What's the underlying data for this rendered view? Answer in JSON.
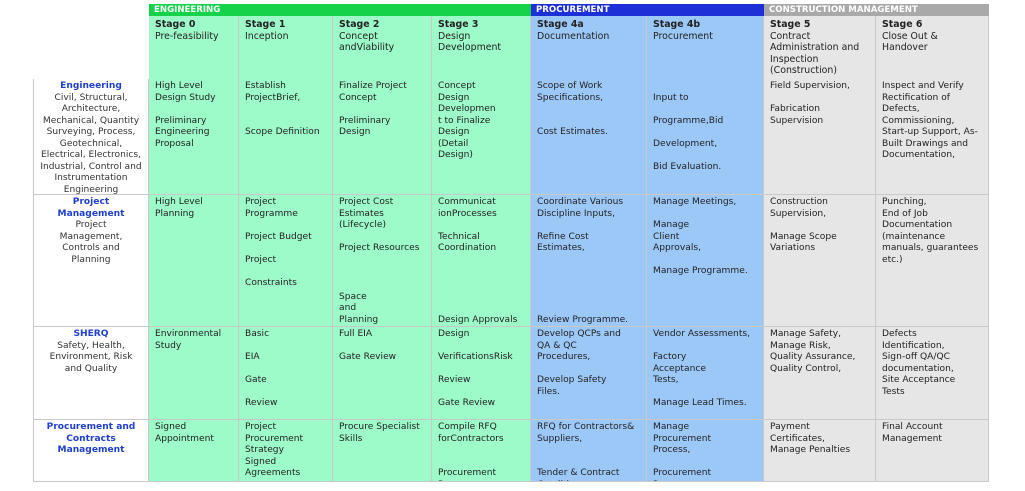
{
  "colors": {
    "engineering_phase": "#16d24a",
    "procurement_phase": "#1d2fd6",
    "construction_phase": "#a9a9a9",
    "engineering_cell": "#9dfbc9",
    "procurement_cell": "#9cc8f8",
    "construction_cell": "#e6e6e6",
    "row_title": "#1f3fd0"
  },
  "phases": [
    {
      "label": "ENGINEERING",
      "cls": "eng"
    },
    {
      "label": "PROCUREMENT",
      "cls": "proc"
    },
    {
      "label": "CONSTRUCTION MANAGEMENT",
      "cls": "cons"
    }
  ],
  "stages": [
    {
      "label": "Stage 0",
      "desc": "Pre-feasibility"
    },
    {
      "label": "Stage 1",
      "desc": "Inception"
    },
    {
      "label": "Stage 2",
      "desc": "Concept\nandViability"
    },
    {
      "label": "Stage 3",
      "desc": "Design\nDevelopment"
    },
    {
      "label": "Stage 4a",
      "desc": "Documentation"
    },
    {
      "label": "Stage 4b",
      "desc": "Procurement"
    },
    {
      "label": "Stage 5",
      "desc": "Contract\nAdministration and\nInspection\n(Construction)"
    },
    {
      "label": "Stage 6",
      "desc": "Close Out &\nHandover"
    }
  ],
  "rows": [
    {
      "title": "Engineering",
      "subtitle": "Civil, Structural, Architecture, Mechanical, Quantity Surveying, Process, Geotechnical, Electrical, Electronics, Industrial, Control and Instrumentation Engineering",
      "cells": [
        "High Level\nDesign Study\n\nPreliminary\nEngineering\nProposal",
        "Establish\nProjectBrief,\n\n\nScope Definition",
        "Finalize Project\nConcept\n\nPreliminary\nDesign",
        "Concept\nDesign\nDevelopmen\nt  to  Finalize\nDesign\n(Detail\nDesign)",
        "Scope of Work\nSpecifications,\n\n\nCost Estimates.",
        "\nInput to\n\nProgramme,Bid\n\nDevelopment,\n\nBid Evaluation.",
        "Field Supervision,\n\nFabrication\nSupervision",
        "Inspect and Verify\nRectification of\nDefects,\nCommissioning,\nStart-up Support, As-\nBuilt Drawings and\nDocumentation,"
      ]
    },
    {
      "title": "Project\nManagement",
      "subtitle": "Project\nManagement,\nControls and\nPlanning",
      "cells": [
        "High Level\nPlanning",
        "Project\nProgramme\n\nProject Budget\n\nProject\n\nConstraints",
        "Project Cost\nEstimates\n(Lifecycle)\n\nProject Resources",
        "Communicat\nionProcesses\n\nTechnical\nCoordination",
        "Coordinate Various\nDiscipline Inputs,\n\nRefine Cost\nEstimates,",
        "Manage Meetings,\n\nManage\nClient\nApprovals,\n\nManage Programme.",
        "Construction\nSupervision,\n\nManage Scope\nVariations",
        "Punching,\nEnd of Job\nDocumentation\n(maintenance\nmanuals, guarantees\netc.)"
      ],
      "extras": [
        "",
        "",
        "Space\nand\nPlanning",
        "Design Approvals",
        "Review Programme.",
        "",
        "",
        ""
      ]
    },
    {
      "title": "SHERQ",
      "subtitle": "Safety, Health,\nEnvironment, Risk\nand Quality",
      "cells": [
        "Environmental\nStudy",
        "Basic\n\nEIA\n\nGate\n\nReview",
        "Full  EIA\n\nGate Review",
        "Design\n\nVerificationsRisk\n\nReview\n\nGate Review",
        "Develop QCPs and\nQA & QC\nProcedures,\n\nDevelop Safety\nFiles.",
        "Vendor Assessments,\n\nFactory\nAcceptance\nTests,\n\nManage Lead Times.",
        "Manage Safety,\nManage Risk,\nQuality Assurance,\nQuality Control,",
        "Defects\nIdentification,\nSign-off QA/QC\ndocumentation,\nSite Acceptance\nTests"
      ]
    },
    {
      "title": "Procurement and\nContracts\nManagement",
      "subtitle": "",
      "cells": [
        "Signed\nAppointment",
        "Project\nProcurement\nStrategy\nSigned\nAgreements",
        "Procure Specialist\nSkills",
        "Compile RFQ\nforContractors\n\n\nProcurement\nProgramme",
        "RFQ for Contractors&\nSuppliers,\n\n\nTender & Contract\nConditions,",
        "Manage\nProcurement\nProcess,\n\nProcurement\nProgramme.",
        "Payment\nCertificates,\nManage Penalties",
        "Final Account\nManagement"
      ]
    }
  ]
}
